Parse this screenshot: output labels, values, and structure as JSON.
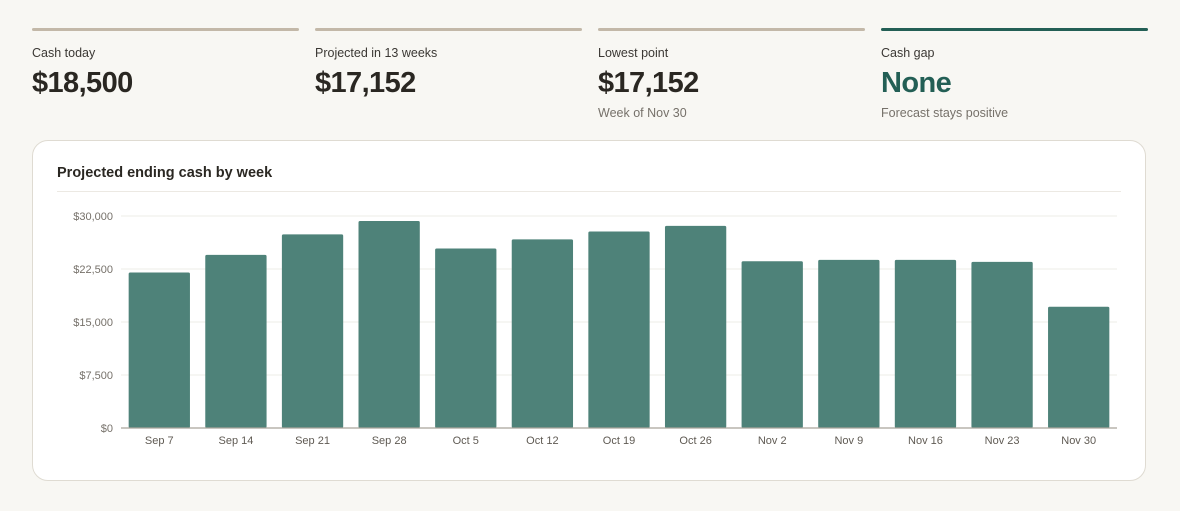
{
  "stats": [
    {
      "label": "Cash today",
      "value": "$18,500",
      "sub": ""
    },
    {
      "label": "Projected in 13 weeks",
      "value": "$17,152",
      "sub": ""
    },
    {
      "label": "Lowest point",
      "value": "$17,152",
      "sub": "Week of Nov 30"
    },
    {
      "label": "Cash gap",
      "value": "None",
      "sub": "Forecast stays positive"
    }
  ],
  "colors": {
    "accent": "#235f55",
    "bar": "#4e8279",
    "neutral_rule": "#c3b8a8",
    "background": "#f8f7f3"
  },
  "chart_data": {
    "type": "bar",
    "title": "Projected ending cash by week",
    "xlabel": "",
    "ylabel": "",
    "categories": [
      "Sep 7",
      "Sep 14",
      "Sep 21",
      "Sep 28",
      "Oct 5",
      "Oct 12",
      "Oct 19",
      "Oct 26",
      "Nov 2",
      "Nov 9",
      "Nov 16",
      "Nov 23",
      "Nov 30"
    ],
    "values": [
      22000,
      24500,
      27400,
      29300,
      25400,
      26700,
      27800,
      28600,
      23600,
      23800,
      23800,
      23500,
      17152
    ],
    "ylim": [
      0,
      30000
    ],
    "yticks": [
      0,
      7500,
      15000,
      22500,
      30000
    ],
    "ytick_labels": [
      "$0",
      "$7,500",
      "$15,000",
      "$22,500",
      "$30,000"
    ],
    "grid": true,
    "legend": "none"
  }
}
